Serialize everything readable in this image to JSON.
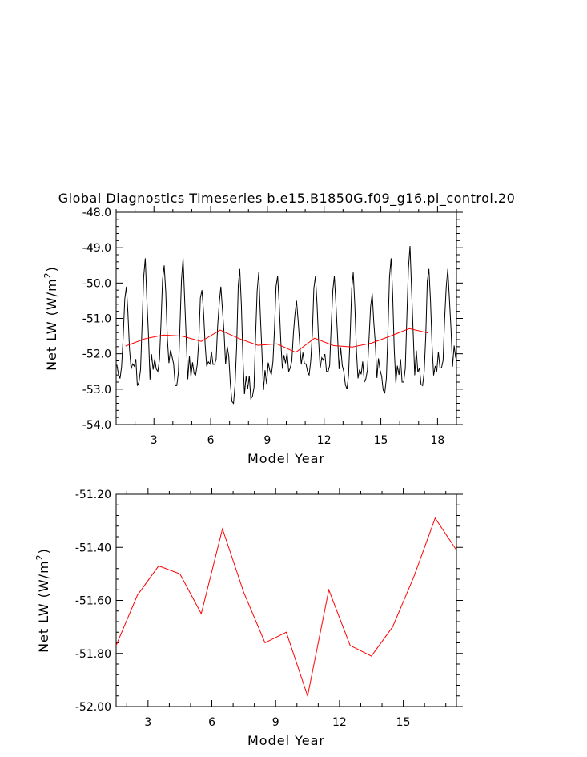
{
  "chart_data": [
    {
      "type": "line",
      "title": "Global Diagnostics Timeseries b.e15.B1850G.f09_g16.pi_control.20",
      "xlabel": "Model Year",
      "ylabel": "Net LW (W/m",
      "ylabel_sup": "2",
      "ylabel_close": ")",
      "xlim": [
        1,
        19
      ],
      "ylim": [
        -54.0,
        -48.0
      ],
      "xticks": [
        3,
        6,
        9,
        12,
        15,
        18
      ],
      "xtick_labels": [
        "3",
        "6",
        "9",
        "12",
        "15",
        "18"
      ],
      "yticks": [
        -54,
        -53,
        -52,
        -51,
        -50,
        -49,
        -48
      ],
      "ytick_labels": [
        "-54.0",
        "-53.0",
        "-52.0",
        "-51.0",
        "-50.0",
        "-49.0",
        "-48.0"
      ],
      "grid": false,
      "series": [
        {
          "color": "#000000",
          "monthly_peaks": [
            -50.1,
            -49.3,
            -49.5,
            -49.3,
            -50.2,
            -50.1,
            -49.6,
            -49.7,
            -49.8,
            -50.5,
            -49.8,
            -49.8,
            -49.7,
            -50.3,
            -49.3,
            -48.95,
            -49.6,
            -49.6
          ],
          "monthly_troughs": [
            -52.7,
            -52.8,
            -52.5,
            -52.9,
            -52.6,
            -52.3,
            -53.4,
            -53.2,
            -52.6,
            -52.4,
            -52.6,
            -52.5,
            -53.0,
            -52.7,
            -53.1,
            -52.8,
            -52.9,
            -52.4
          ],
          "x_start": 1.04,
          "x_end": 18.96
        },
        {
          "color": "#ff0000",
          "x": [
            1.5,
            2.5,
            3.5,
            4.5,
            5.5,
            6.5,
            7.5,
            8.5,
            9.5,
            10.5,
            11.5,
            12.5,
            13.5,
            14.5,
            15.5,
            16.5,
            17.5
          ],
          "y": [
            -51.78,
            -51.58,
            -51.47,
            -51.5,
            -51.65,
            -51.33,
            -51.57,
            -51.76,
            -51.72,
            -51.96,
            -51.56,
            -51.77,
            -51.81,
            -51.7,
            -51.5,
            -51.29,
            -51.41
          ]
        }
      ]
    },
    {
      "type": "line",
      "xlabel": "Model Year",
      "ylabel": "Net LW (W/m",
      "ylabel_sup": "2",
      "ylabel_close": ")",
      "xlim": [
        1.5,
        17.5
      ],
      "ylim": [
        -52.0,
        -51.2
      ],
      "xticks": [
        3,
        6,
        9,
        12,
        15
      ],
      "xtick_labels": [
        "3",
        "6",
        "9",
        "12",
        "15"
      ],
      "yticks": [
        -52.0,
        -51.8,
        -51.6,
        -51.4,
        -51.2
      ],
      "ytick_labels": [
        "-52.00",
        "-51.80",
        "-51.60",
        "-51.40",
        "-51.20"
      ],
      "grid": false,
      "series": [
        {
          "color": "#ff0000",
          "x": [
            1.5,
            2.5,
            3.5,
            4.5,
            5.5,
            6.5,
            7.5,
            8.5,
            9.5,
            10.5,
            11.5,
            12.5,
            13.5,
            14.5,
            15.5,
            16.5,
            17.5
          ],
          "y": [
            -51.77,
            -51.58,
            -51.47,
            -51.5,
            -51.65,
            -51.33,
            -51.57,
            -51.76,
            -51.72,
            -51.96,
            -51.56,
            -51.77,
            -51.81,
            -51.7,
            -51.51,
            -51.29,
            -51.41
          ]
        }
      ]
    }
  ]
}
